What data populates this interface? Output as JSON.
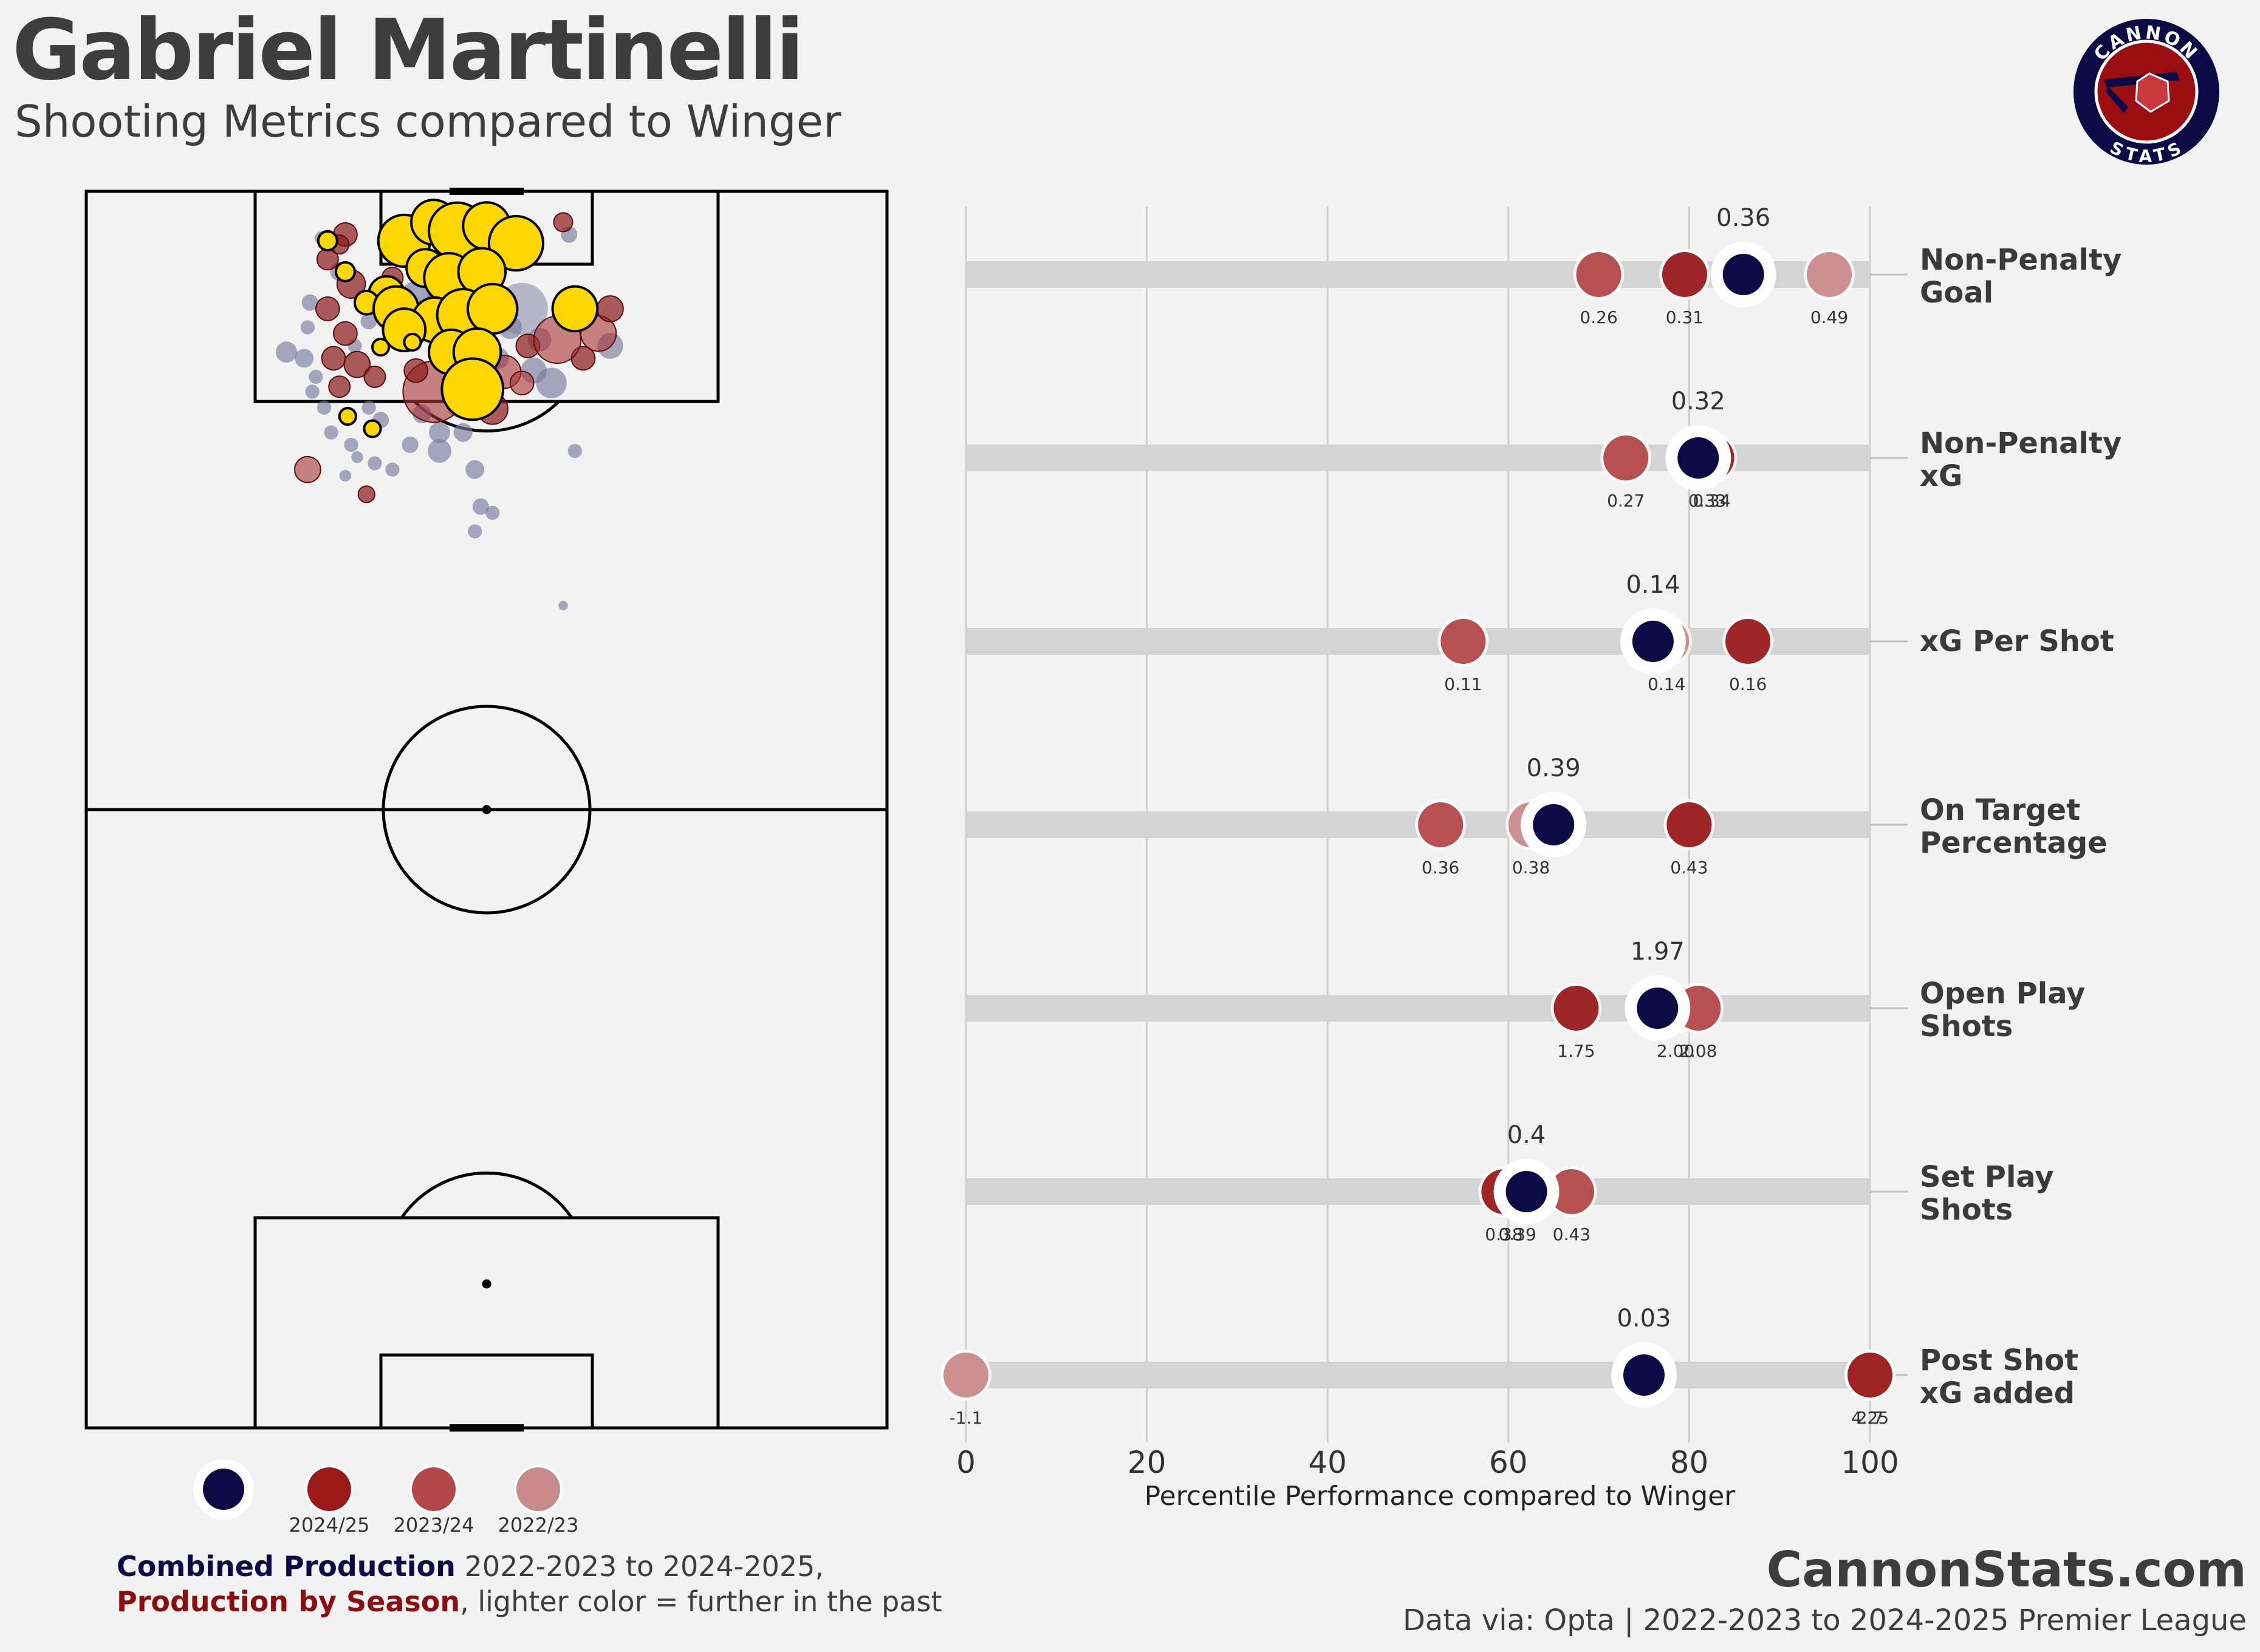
{
  "header": {
    "title": "Gabriel Martinelli",
    "subtitle": "Shooting Metrics compared to Winger"
  },
  "logo": {
    "text_top": "CANNON",
    "text_bottom": "STATS",
    "colors": {
      "ring": "#0b0a45",
      "inner": "#9a0e12",
      "crest": "#c8383c"
    }
  },
  "colors": {
    "combined": "#0b0a45",
    "season_2024_25": "#9a1a1a",
    "season_2023_24": "#b34848",
    "season_2022_23": "#c98a8a",
    "xg_dot_goal": "#ffd700",
    "bar_track": "#d4d4d4",
    "grid": "#cfcfcf",
    "background": "#f2f2f2"
  },
  "chart_data": {
    "type": "scatter",
    "x_axis": {
      "label": "Percentile Performance compared to Winger",
      "range": [
        0,
        100
      ],
      "ticks": [
        "0",
        "20",
        "40",
        "60",
        "80",
        "100"
      ],
      "grid": true
    },
    "series_order": [
      "Combined",
      "2024/25",
      "2023/24",
      "2022/23"
    ],
    "metrics": [
      {
        "label_line1": "Non-Penalty",
        "label_line2": "Goal",
        "combined": {
          "pct": 86,
          "label": "0.36"
        },
        "seasons": [
          {
            "season": "2024/25",
            "pct": 79.5,
            "label": "0.31"
          },
          {
            "season": "2023/24",
            "pct": 70,
            "label": "0.26"
          },
          {
            "season": "2022/23",
            "pct": 95.5,
            "label": "0.49"
          }
        ]
      },
      {
        "label_line1": "Non-Penalty",
        "label_line2": "xG",
        "combined": {
          "pct": 81,
          "label": "0.32"
        },
        "seasons": [
          {
            "season": "2024/25",
            "pct": 82.5,
            "label": "0.34"
          },
          {
            "season": "2023/24",
            "pct": 73,
            "label": "0.27"
          },
          {
            "season": "2022/23",
            "pct": 82,
            "label": "0.33"
          }
        ]
      },
      {
        "label_line1": "xG Per Shot",
        "label_line2": "",
        "combined": {
          "pct": 76,
          "label": "0.14"
        },
        "seasons": [
          {
            "season": "2024/25",
            "pct": 86.5,
            "label": "0.16"
          },
          {
            "season": "2023/24",
            "pct": 55,
            "label": "0.11"
          },
          {
            "season": "2022/23",
            "pct": 77.5,
            "label": "0.14"
          }
        ]
      },
      {
        "label_line1": "On Target",
        "label_line2": "Percentage",
        "combined": {
          "pct": 65,
          "label": "0.39"
        },
        "seasons": [
          {
            "season": "2024/25",
            "pct": 80,
            "label": "0.43"
          },
          {
            "season": "2023/24",
            "pct": 52.5,
            "label": "0.36"
          },
          {
            "season": "2022/23",
            "pct": 62.5,
            "label": "0.38"
          }
        ]
      },
      {
        "label_line1": "Open Play",
        "label_line2": "Shots",
        "combined": {
          "pct": 76.5,
          "label": "1.97"
        },
        "seasons": [
          {
            "season": "2024/25",
            "pct": 67.5,
            "label": "1.75"
          },
          {
            "season": "2023/24",
            "pct": 81,
            "label": "2.08"
          },
          {
            "season": "2022/23",
            "pct": 78.5,
            "label": "2.00"
          }
        ]
      },
      {
        "label_line1": "Set Play",
        "label_line2": "Shots",
        "combined": {
          "pct": 62,
          "label": "0.4"
        },
        "seasons": [
          {
            "season": "2024/25",
            "pct": 59.5,
            "label": "0.38"
          },
          {
            "season": "2023/24",
            "pct": 67,
            "label": "0.43"
          },
          {
            "season": "2022/23",
            "pct": 61,
            "label": "0.39"
          }
        ]
      },
      {
        "label_line1": "Post Shot",
        "label_line2": "xG added",
        "combined": {
          "pct": 75,
          "label": "0.03"
        },
        "seasons": [
          {
            "season": "2024/25",
            "pct": 100,
            "label": "4.25"
          },
          {
            "season": "2023/24",
            "pct": 100,
            "label": "2.7"
          },
          {
            "season": "2022/23",
            "pct": 0,
            "label": "-1.1"
          }
        ]
      }
    ]
  },
  "shot_map": {
    "note_scale": "pitch 0-100 width, 0-100 from attacking goal line",
    "pitch_length": 100,
    "pitch_width": 68,
    "shots": [
      {
        "x": 27,
        "y": 4,
        "r": 2.2,
        "k": "g"
      },
      {
        "x": 29.5,
        "y": 2.5,
        "r": 1.9,
        "k": "g"
      },
      {
        "x": 31.5,
        "y": 3.2,
        "r": 2.4,
        "k": "g"
      },
      {
        "x": 34,
        "y": 2.8,
        "r": 2.0,
        "k": "g"
      },
      {
        "x": 36.5,
        "y": 4.2,
        "r": 2.3,
        "k": "g"
      },
      {
        "x": 28.8,
        "y": 6.2,
        "r": 1.6,
        "k": "g"
      },
      {
        "x": 30.8,
        "y": 7.0,
        "r": 2.1,
        "k": "g"
      },
      {
        "x": 33.6,
        "y": 6.5,
        "r": 2.0,
        "k": "g"
      },
      {
        "x": 25.5,
        "y": 8.3,
        "r": 1.5,
        "k": "g"
      },
      {
        "x": 23.8,
        "y": 9.0,
        "r": 1.0,
        "k": "g"
      },
      {
        "x": 20.5,
        "y": 4.0,
        "r": 0.8,
        "k": "g"
      },
      {
        "x": 26.3,
        "y": 9.5,
        "r": 1.9,
        "k": "g"
      },
      {
        "x": 29.6,
        "y": 10.4,
        "r": 1.9,
        "k": "g"
      },
      {
        "x": 32.0,
        "y": 10.0,
        "r": 2.2,
        "k": "g"
      },
      {
        "x": 34.5,
        "y": 9.5,
        "r": 2.1,
        "k": "g"
      },
      {
        "x": 27.0,
        "y": 11.2,
        "r": 1.8,
        "k": "g"
      },
      {
        "x": 31.0,
        "y": 13.0,
        "r": 1.9,
        "k": "g"
      },
      {
        "x": 33.2,
        "y": 13.0,
        "r": 2.0,
        "k": "g"
      },
      {
        "x": 32.8,
        "y": 16.0,
        "r": 2.6,
        "k": "g"
      },
      {
        "x": 25.0,
        "y": 12.6,
        "r": 0.7,
        "k": "g"
      },
      {
        "x": 27.7,
        "y": 12.2,
        "r": 0.7,
        "k": "g"
      },
      {
        "x": 22.2,
        "y": 18.2,
        "r": 0.7,
        "k": "g"
      },
      {
        "x": 24.3,
        "y": 19.2,
        "r": 0.7,
        "k": "g"
      },
      {
        "x": 41.5,
        "y": 9.5,
        "r": 1.9,
        "k": "g"
      },
      {
        "x": 22.0,
        "y": 6.5,
        "r": 0.8,
        "k": "g"
      },
      {
        "x": 22,
        "y": 3.5,
        "r": 1.0,
        "k": "r"
      },
      {
        "x": 20.5,
        "y": 5.5,
        "r": 0.9,
        "k": "r"
      },
      {
        "x": 22.5,
        "y": 7.5,
        "r": 1.2,
        "k": "r"
      },
      {
        "x": 20.5,
        "y": 9.5,
        "r": 1.0,
        "k": "r"
      },
      {
        "x": 22,
        "y": 11.5,
        "r": 1.0,
        "k": "r"
      },
      {
        "x": 21,
        "y": 13.5,
        "r": 1.0,
        "k": "r"
      },
      {
        "x": 23,
        "y": 14,
        "r": 1.1,
        "k": "r"
      },
      {
        "x": 21.5,
        "y": 15.8,
        "r": 0.9,
        "k": "r"
      },
      {
        "x": 24.5,
        "y": 15,
        "r": 0.9,
        "k": "r"
      },
      {
        "x": 29.5,
        "y": 16.2,
        "r": 2.6,
        "k": "r2"
      },
      {
        "x": 35.5,
        "y": 14.6,
        "r": 1.4,
        "k": "r2"
      },
      {
        "x": 43.5,
        "y": 11.5,
        "r": 1.5,
        "k": "r2"
      },
      {
        "x": 44.5,
        "y": 9.5,
        "r": 1.1,
        "k": "r"
      },
      {
        "x": 42.2,
        "y": 13.5,
        "r": 1.0,
        "k": "r"
      },
      {
        "x": 37.5,
        "y": 12.5,
        "r": 1.0,
        "k": "r"
      },
      {
        "x": 18.8,
        "y": 22.5,
        "r": 1.1,
        "k": "r2"
      },
      {
        "x": 23.8,
        "y": 24.5,
        "r": 0.7,
        "k": "r"
      },
      {
        "x": 40.5,
        "y": 2.5,
        "r": 0.8,
        "k": "r"
      },
      {
        "x": 34.5,
        "y": 17.6,
        "r": 1.3,
        "k": "r"
      },
      {
        "x": 26,
        "y": 7,
        "r": 0.9,
        "k": "r"
      },
      {
        "x": 28,
        "y": 14.5,
        "r": 1.0,
        "k": "r"
      },
      {
        "x": 21.5,
        "y": 4.3,
        "r": 0.8,
        "k": "r"
      },
      {
        "x": 37,
        "y": 15.5,
        "r": 1.0,
        "k": "r2"
      },
      {
        "x": 40,
        "y": 12,
        "r": 2.0,
        "k": "r2"
      },
      {
        "x": 17,
        "y": 13,
        "r": 0.9,
        "k": "b"
      },
      {
        "x": 18.5,
        "y": 13.5,
        "r": 0.8,
        "k": "b"
      },
      {
        "x": 21.5,
        "y": 6.5,
        "r": 0.8,
        "k": "b"
      },
      {
        "x": 19,
        "y": 9,
        "r": 0.7,
        "k": "b"
      },
      {
        "x": 18.8,
        "y": 11,
        "r": 0.6,
        "k": "b"
      },
      {
        "x": 19.5,
        "y": 15,
        "r": 0.6,
        "k": "b"
      },
      {
        "x": 19.2,
        "y": 16.2,
        "r": 0.6,
        "k": "b"
      },
      {
        "x": 20.2,
        "y": 17.5,
        "r": 0.6,
        "k": "b"
      },
      {
        "x": 20.8,
        "y": 19.5,
        "r": 0.6,
        "k": "b"
      },
      {
        "x": 24,
        "y": 17.5,
        "r": 0.6,
        "k": "b"
      },
      {
        "x": 25,
        "y": 18.5,
        "r": 0.7,
        "k": "b"
      },
      {
        "x": 22.5,
        "y": 20.5,
        "r": 0.6,
        "k": "b"
      },
      {
        "x": 23,
        "y": 21.5,
        "r": 0.5,
        "k": "b"
      },
      {
        "x": 22,
        "y": 23,
        "r": 0.5,
        "k": "b"
      },
      {
        "x": 24.5,
        "y": 22,
        "r": 0.6,
        "k": "b"
      },
      {
        "x": 26,
        "y": 22.5,
        "r": 0.6,
        "k": "b"
      },
      {
        "x": 27.5,
        "y": 20.5,
        "r": 0.7,
        "k": "b"
      },
      {
        "x": 30,
        "y": 19.5,
        "r": 0.9,
        "k": "b"
      },
      {
        "x": 30,
        "y": 21,
        "r": 1.0,
        "k": "b"
      },
      {
        "x": 32,
        "y": 19.5,
        "r": 0.8,
        "k": "b"
      },
      {
        "x": 33,
        "y": 22.5,
        "r": 0.8,
        "k": "b"
      },
      {
        "x": 33.5,
        "y": 25.5,
        "r": 0.7,
        "k": "b"
      },
      {
        "x": 34.5,
        "y": 26,
        "r": 0.6,
        "k": "b"
      },
      {
        "x": 33,
        "y": 27.5,
        "r": 0.6,
        "k": "b"
      },
      {
        "x": 28,
        "y": 8.5,
        "r": 1.3,
        "k": "b"
      },
      {
        "x": 30,
        "y": 9,
        "r": 1.2,
        "k": "b"
      },
      {
        "x": 37,
        "y": 9.5,
        "r": 2.2,
        "k": "b2"
      },
      {
        "x": 38,
        "y": 14.5,
        "r": 1.1,
        "k": "b"
      },
      {
        "x": 39.5,
        "y": 15.5,
        "r": 1.3,
        "k": "b"
      },
      {
        "x": 44.5,
        "y": 12.5,
        "r": 1.1,
        "k": "b"
      },
      {
        "x": 41,
        "y": 3.5,
        "r": 0.7,
        "k": "b"
      },
      {
        "x": 20,
        "y": 3.8,
        "r": 0.6,
        "k": "b"
      },
      {
        "x": 25.5,
        "y": 4,
        "r": 0.8,
        "k": "b"
      },
      {
        "x": 36,
        "y": 11,
        "r": 1.0,
        "k": "b"
      },
      {
        "x": 35,
        "y": 13.5,
        "r": 0.9,
        "k": "b"
      },
      {
        "x": 31.5,
        "y": 17.5,
        "r": 0.8,
        "k": "b"
      },
      {
        "x": 28.5,
        "y": 18,
        "r": 0.8,
        "k": "b"
      },
      {
        "x": 41.5,
        "y": 21,
        "r": 0.6,
        "k": "b"
      },
      {
        "x": 40.5,
        "y": 33.5,
        "r": 0.4,
        "k": "b"
      },
      {
        "x": 24,
        "y": 10.5,
        "r": 0.7,
        "k": "b"
      },
      {
        "x": 22.8,
        "y": 12.5,
        "r": 0.6,
        "k": "b"
      },
      {
        "x": 38.5,
        "y": 12,
        "r": 1.0,
        "k": "b"
      }
    ]
  },
  "legend": {
    "seasons": [
      "2024/25",
      "2023/24",
      "2022/23"
    ],
    "line1_bold": "Combined Production",
    "line1_rest": " 2022-2023 to 2024-2025,",
    "line2_bold": "Production by Season",
    "line2_rest": ", lighter color = further in the past"
  },
  "footer": {
    "site": "CannonStats.com",
    "source": "Data via: Opta | 2022-2023 to 2024-2025 Premier League"
  }
}
